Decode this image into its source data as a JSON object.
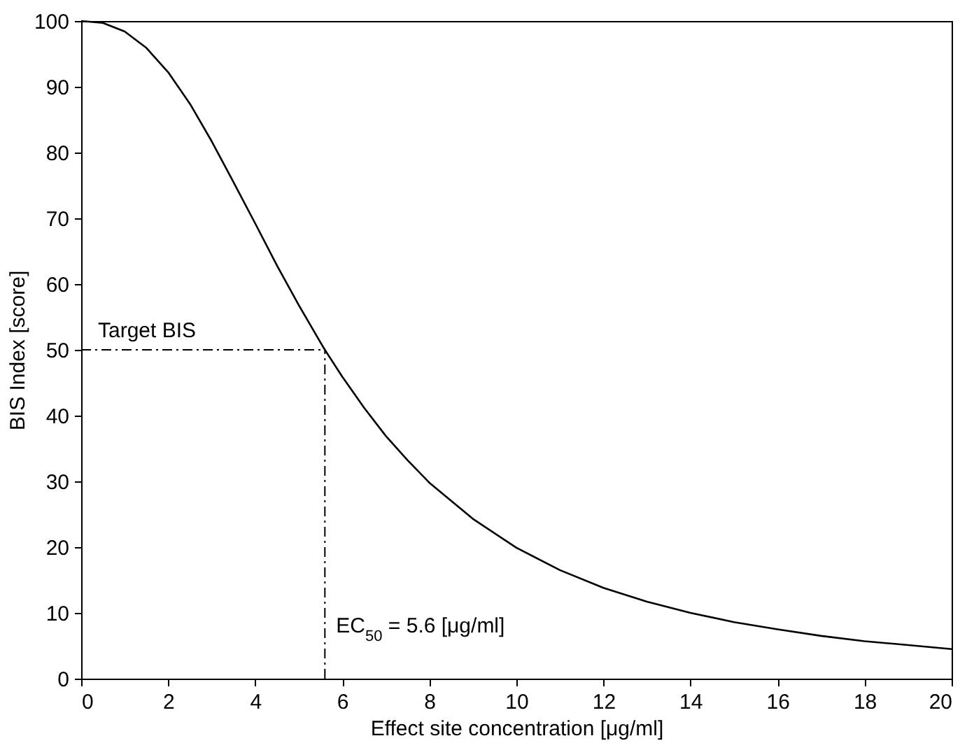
{
  "chart_data": {
    "type": "line",
    "xlabel": "Effect site concentration [μg/ml]",
    "ylabel": "BIS Index [score]",
    "x": [
      0,
      0.5,
      1,
      1.5,
      2,
      2.5,
      3,
      3.5,
      4,
      4.5,
      5,
      5.5,
      5.6,
      6,
      6.5,
      7,
      7.5,
      8,
      9,
      10,
      11,
      12,
      13,
      14,
      15,
      16,
      17,
      18,
      19,
      20
    ],
    "series": [
      {
        "color": "#000000",
        "values": [
          100,
          99.7,
          98.4,
          95.9,
          92.2,
          87.4,
          81.7,
          75.5,
          69.2,
          62.8,
          56.8,
          51.1,
          50,
          45.9,
          41.2,
          36.9,
          33.2,
          29.8,
          24.3,
          19.9,
          16.5,
          13.8,
          11.7,
          10.0,
          8.6,
          7.5,
          6.5,
          5.7,
          5.1,
          4.5
        ]
      }
    ],
    "xlim": [
      0,
      20
    ],
    "xticks": [
      0,
      2,
      4,
      6,
      8,
      10,
      12,
      14,
      16,
      18,
      20
    ],
    "ylim": [
      0,
      100
    ],
    "yticks": [
      0,
      10,
      20,
      30,
      40,
      50,
      60,
      70,
      80,
      90,
      100
    ],
    "grid": false,
    "marker": "none",
    "line_style": "solid",
    "ref_lines": [
      {
        "axis": "y",
        "value": 50,
        "label": "Target BIS",
        "color": "#000000",
        "line_style": "dashdot"
      },
      {
        "axis": "x",
        "value": 5.6,
        "label": "EC$_{50}$ = 5.6 [μg/ml]",
        "color": "#000000",
        "line_style": "dashdot"
      }
    ]
  }
}
